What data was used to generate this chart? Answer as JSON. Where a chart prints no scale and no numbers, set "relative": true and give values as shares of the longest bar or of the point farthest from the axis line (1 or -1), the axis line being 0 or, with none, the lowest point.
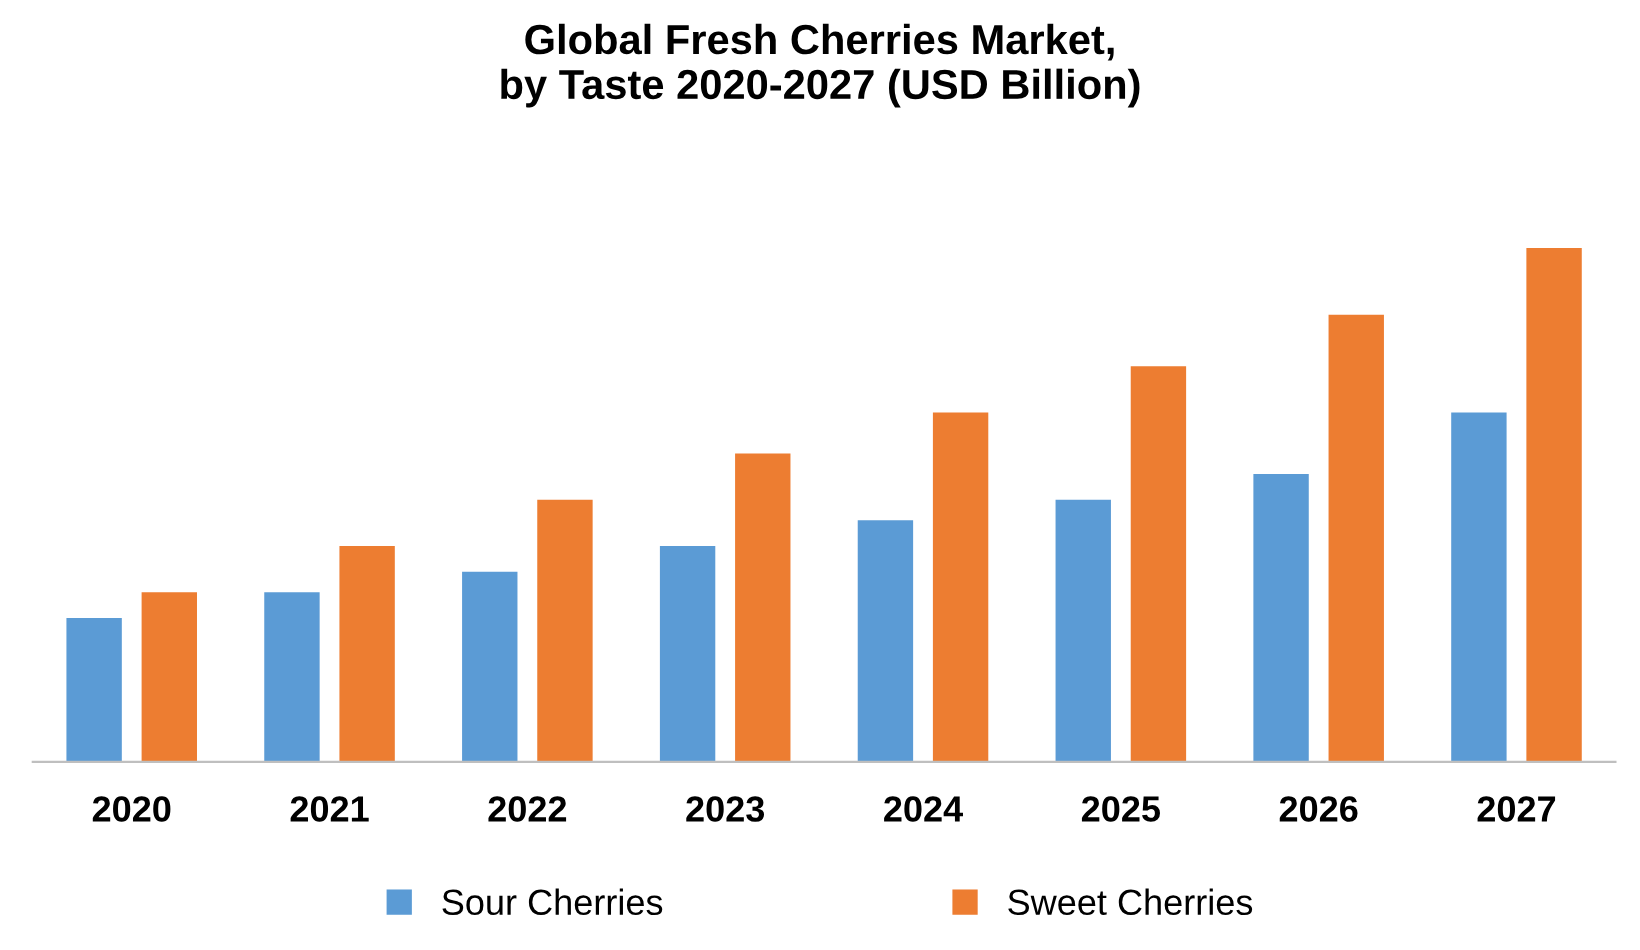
{
  "chart_data": {
    "type": "bar",
    "title": "Global Fresh Cherries Market,\nby Taste 2020-2027 (USD Billion)",
    "categories": [
      "2020",
      "2021",
      "2022",
      "2023",
      "2024",
      "2025",
      "2026",
      "2027"
    ],
    "relative": true,
    "series": [
      {
        "name": "Sour Cherries",
        "color": "#5b9bd5",
        "values": [
          0.28,
          0.33,
          0.37,
          0.42,
          0.47,
          0.51,
          0.56,
          0.68
        ]
      },
      {
        "name": "Sweet Cherries",
        "color": "#ed7d31",
        "values": [
          0.33,
          0.42,
          0.51,
          0.6,
          0.68,
          0.77,
          0.87,
          1.0
        ]
      }
    ],
    "legend": "bottom",
    "grid": false
  }
}
